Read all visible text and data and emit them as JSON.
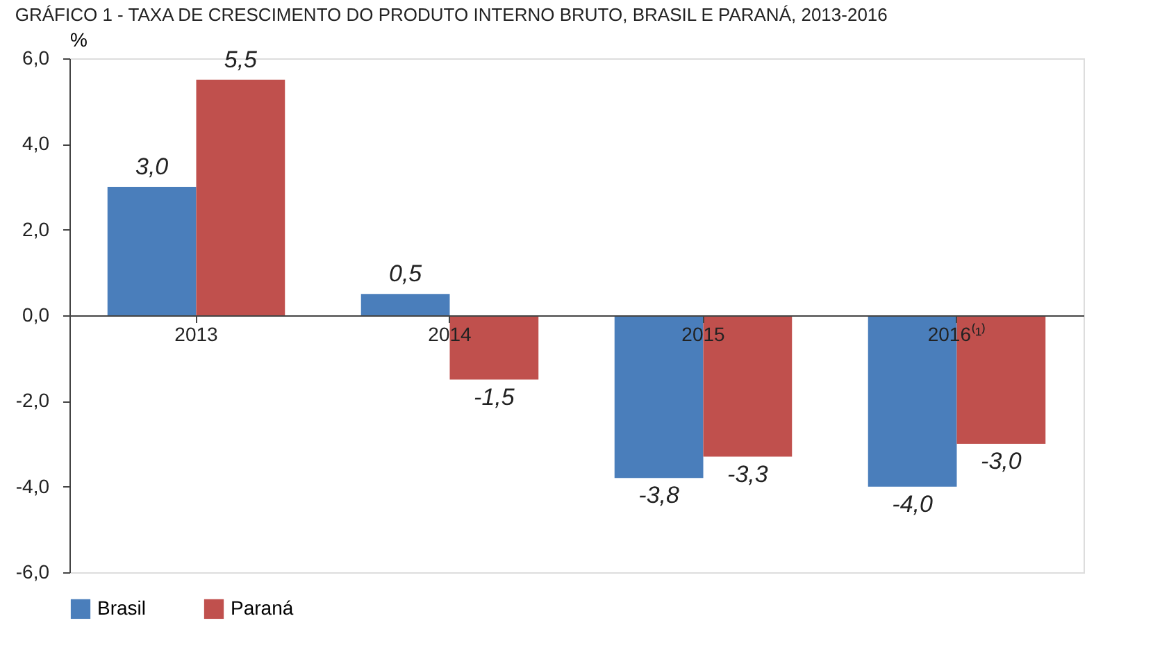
{
  "chart_data": {
    "type": "bar",
    "title": "GRÁFICO 1 - TAXA DE CRESCIMENTO DO PRODUTO INTERNO BRUTO, BRASIL E PARANÁ, 2013-2016",
    "ylabel": "%",
    "categories": [
      "2013",
      "2014",
      "2015",
      "2016⁽¹⁾"
    ],
    "series": [
      {
        "name": "Brasil",
        "color": "#4a7ebb",
        "values": [
          3.0,
          0.5,
          -3.8,
          -4.0
        ],
        "value_labels": [
          "3,0",
          "0,5",
          "-3,8",
          "-4,0"
        ]
      },
      {
        "name": "Paraná",
        "color": "#c0504d",
        "values": [
          5.5,
          -1.5,
          -3.3,
          -3.0
        ],
        "value_labels": [
          "5,5",
          "-1,5",
          "-3,3",
          "-3,0"
        ]
      }
    ],
    "ylim": [
      -6,
      6
    ],
    "yticks": [
      {
        "value": -6,
        "label": "-6,0"
      },
      {
        "value": -4,
        "label": "-4,0"
      },
      {
        "value": -2,
        "label": "-2,0"
      },
      {
        "value": 0,
        "label": "0,0"
      },
      {
        "value": 2,
        "label": "2,0"
      },
      {
        "value": 4,
        "label": "4,0"
      },
      {
        "value": 6,
        "label": "6,0"
      }
    ],
    "grid": false,
    "legend": "bottom"
  }
}
